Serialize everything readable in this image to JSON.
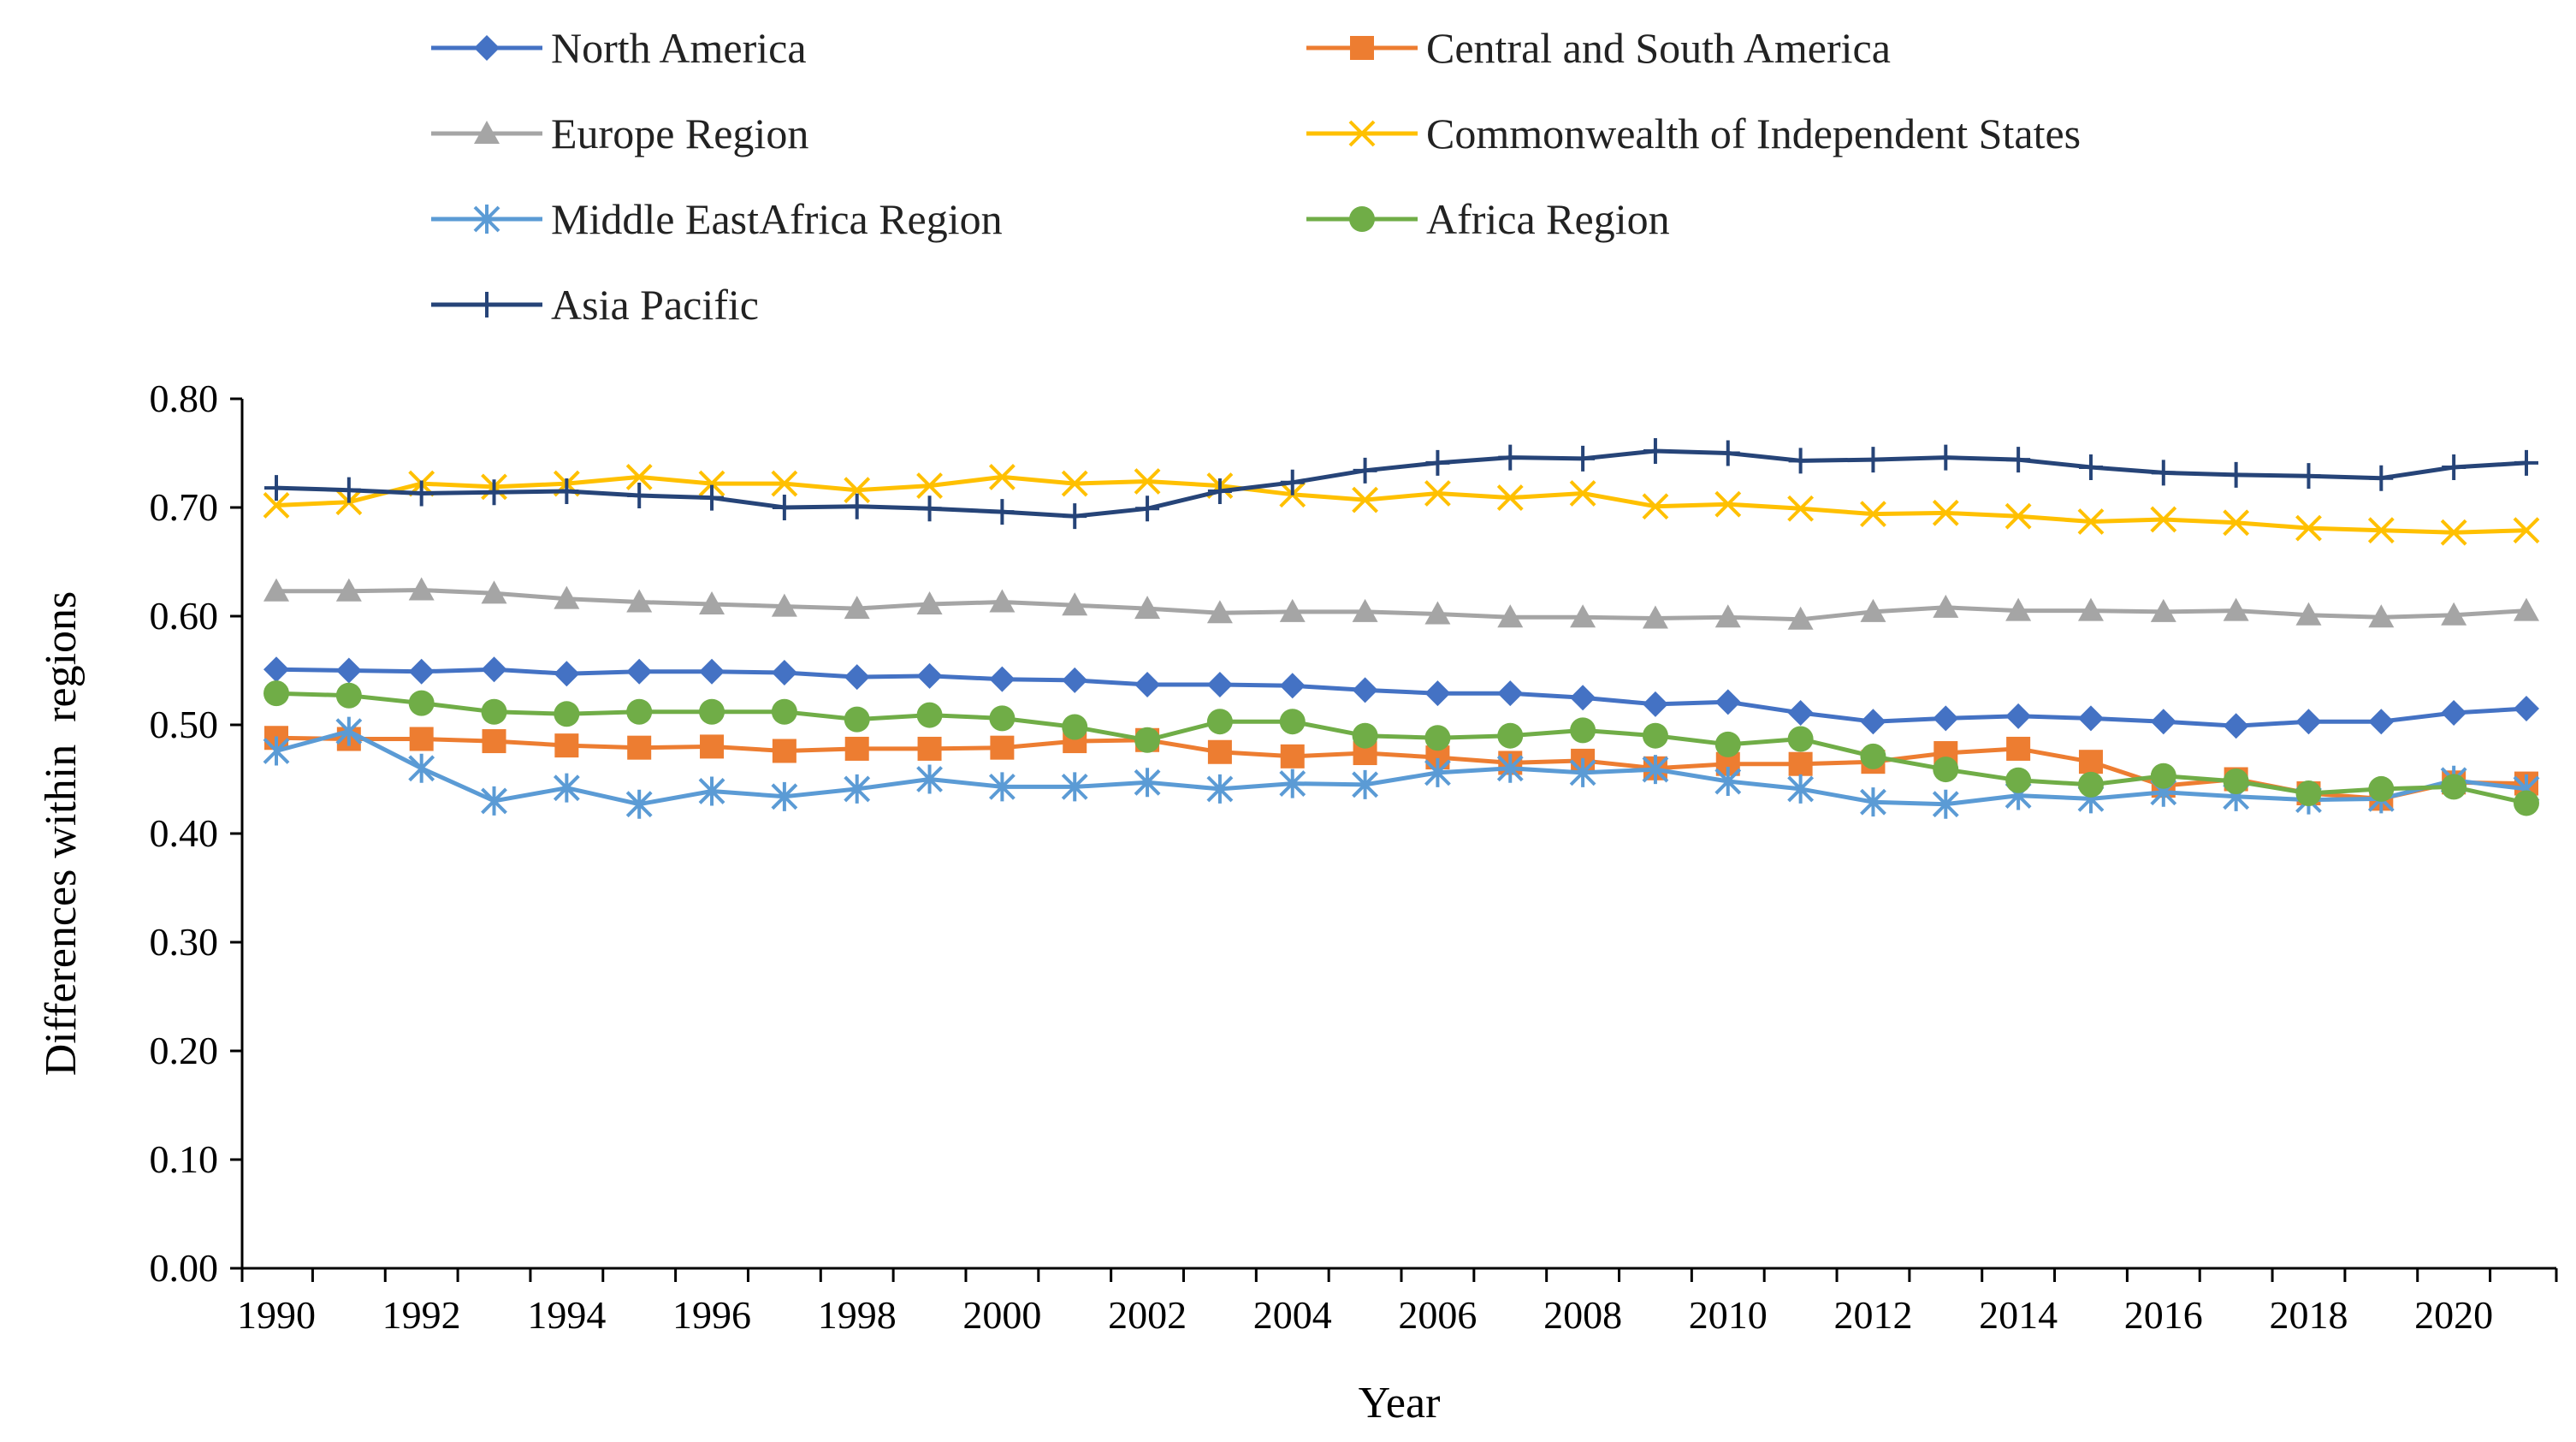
{
  "chart_data": {
    "type": "line",
    "title": "",
    "xlabel": "Year",
    "ylabel": "Differences within  regions",
    "ylim": [
      0,
      0.8
    ],
    "yticks": [
      "0.00",
      "0.10",
      "0.20",
      "0.30",
      "0.40",
      "0.50",
      "0.60",
      "0.70",
      "0.80"
    ],
    "grid": false,
    "legend_position": "top",
    "x": [
      1990,
      1991,
      1992,
      1993,
      1994,
      1995,
      1996,
      1997,
      1998,
      1999,
      2000,
      2001,
      2002,
      2003,
      2004,
      2005,
      2006,
      2007,
      2008,
      2009,
      2010,
      2011,
      2012,
      2013,
      2014,
      2015,
      2016,
      2017,
      2018,
      2019,
      2020,
      2021
    ],
    "xtick_labels": [
      "1990",
      "1992",
      "1994",
      "1996",
      "1998",
      "2000",
      "2002",
      "2004",
      "2006",
      "2008",
      "2010",
      "2012",
      "2014",
      "2016",
      "2018",
      "2020"
    ],
    "series": [
      {
        "name": "North America",
        "color": "#4472C4",
        "marker": "diamond",
        "values": [
          0.551,
          0.55,
          0.549,
          0.551,
          0.547,
          0.549,
          0.549,
          0.548,
          0.544,
          0.545,
          0.542,
          0.541,
          0.537,
          0.537,
          0.536,
          0.532,
          0.529,
          0.529,
          0.525,
          0.519,
          0.521,
          0.511,
          0.503,
          0.506,
          0.508,
          0.506,
          0.503,
          0.499,
          0.503,
          0.503,
          0.511,
          0.515
        ]
      },
      {
        "name": "Central and South America",
        "color": "#ED7D31",
        "marker": "square",
        "values": [
          0.488,
          0.487,
          0.487,
          0.485,
          0.481,
          0.479,
          0.48,
          0.476,
          0.478,
          0.478,
          0.479,
          0.485,
          0.486,
          0.475,
          0.471,
          0.474,
          0.47,
          0.465,
          0.467,
          0.46,
          0.464,
          0.464,
          0.466,
          0.474,
          0.478,
          0.466,
          0.444,
          0.45,
          0.437,
          0.432,
          0.447,
          0.446
        ]
      },
      {
        "name": "Europe Region",
        "color": "#A5A5A5",
        "marker": "triangle",
        "values": [
          0.623,
          0.623,
          0.624,
          0.621,
          0.616,
          0.613,
          0.611,
          0.609,
          0.607,
          0.611,
          0.613,
          0.61,
          0.607,
          0.603,
          0.604,
          0.604,
          0.602,
          0.599,
          0.599,
          0.598,
          0.599,
          0.597,
          0.604,
          0.608,
          0.605,
          0.605,
          0.604,
          0.605,
          0.601,
          0.599,
          0.601,
          0.605
        ]
      },
      {
        "name": "Commonwealth of Independent States",
        "color": "#FFC000",
        "marker": "x",
        "values": [
          0.702,
          0.705,
          0.722,
          0.719,
          0.722,
          0.728,
          0.722,
          0.722,
          0.716,
          0.72,
          0.728,
          0.722,
          0.724,
          0.72,
          0.712,
          0.707,
          0.713,
          0.709,
          0.713,
          0.701,
          0.703,
          0.699,
          0.694,
          0.695,
          0.692,
          0.687,
          0.689,
          0.686,
          0.681,
          0.679,
          0.677,
          0.679
        ]
      },
      {
        "name": "Middle EastAfrica Region",
        "color": "#5B9BD5",
        "marker": "star",
        "values": [
          0.476,
          0.494,
          0.46,
          0.43,
          0.442,
          0.427,
          0.439,
          0.434,
          0.441,
          0.45,
          0.443,
          0.443,
          0.447,
          0.441,
          0.446,
          0.445,
          0.456,
          0.46,
          0.456,
          0.459,
          0.448,
          0.441,
          0.429,
          0.427,
          0.435,
          0.432,
          0.438,
          0.434,
          0.431,
          0.432,
          0.449,
          0.441
        ]
      },
      {
        "name": "Africa Region",
        "color": "#70AD47",
        "marker": "circle",
        "values": [
          0.529,
          0.527,
          0.52,
          0.512,
          0.51,
          0.512,
          0.512,
          0.512,
          0.505,
          0.509,
          0.506,
          0.498,
          0.486,
          0.503,
          0.503,
          0.49,
          0.488,
          0.49,
          0.495,
          0.49,
          0.482,
          0.487,
          0.471,
          0.459,
          0.449,
          0.445,
          0.453,
          0.448,
          0.437,
          0.441,
          0.443,
          0.428
        ]
      },
      {
        "name": "Asia Pacific",
        "color": "#264478",
        "marker": "plus",
        "values": [
          0.718,
          0.716,
          0.713,
          0.714,
          0.715,
          0.711,
          0.709,
          0.7,
          0.701,
          0.699,
          0.696,
          0.692,
          0.699,
          0.715,
          0.723,
          0.734,
          0.741,
          0.746,
          0.745,
          0.752,
          0.75,
          0.743,
          0.744,
          0.746,
          0.744,
          0.737,
          0.732,
          0.73,
          0.729,
          0.727,
          0.737,
          0.741
        ]
      }
    ]
  }
}
